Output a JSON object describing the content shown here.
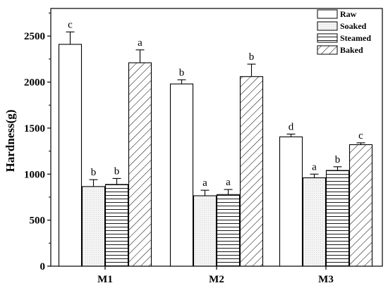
{
  "chart_data": {
    "type": "bar",
    "ylabel": "Hardness(g)",
    "xlabel": "",
    "ylim": [
      0,
      2800
    ],
    "yticks": [
      0,
      500,
      1000,
      1500,
      2000,
      2500
    ],
    "categories": [
      "M1",
      "M2",
      "M3"
    ],
    "legend_position": "top-right",
    "series": [
      {
        "name": "Raw",
        "pattern": "none",
        "fill": "#ffffff",
        "values": [
          2410,
          1980,
          1405
        ],
        "errors": [
          135,
          45,
          30
        ],
        "sig_labels": [
          "c",
          "b",
          "d"
        ]
      },
      {
        "name": "Soaked",
        "pattern": "dots",
        "fill": "#f2f2f2",
        "values": [
          865,
          765,
          960
        ],
        "errors": [
          75,
          60,
          40
        ],
        "sig_labels": [
          "b",
          "a",
          "a"
        ]
      },
      {
        "name": "Steamed",
        "pattern": "horizontal",
        "fill": "#ffffff",
        "values": [
          888,
          778,
          1040
        ],
        "errors": [
          65,
          55,
          40
        ],
        "sig_labels": [
          "b",
          "a",
          "b"
        ]
      },
      {
        "name": "Baked",
        "pattern": "diagonal",
        "fill": "#ffffff",
        "values": [
          2210,
          2060,
          1320
        ],
        "errors": [
          140,
          135,
          20
        ],
        "sig_labels": [
          "a",
          "b",
          "c"
        ]
      }
    ]
  }
}
